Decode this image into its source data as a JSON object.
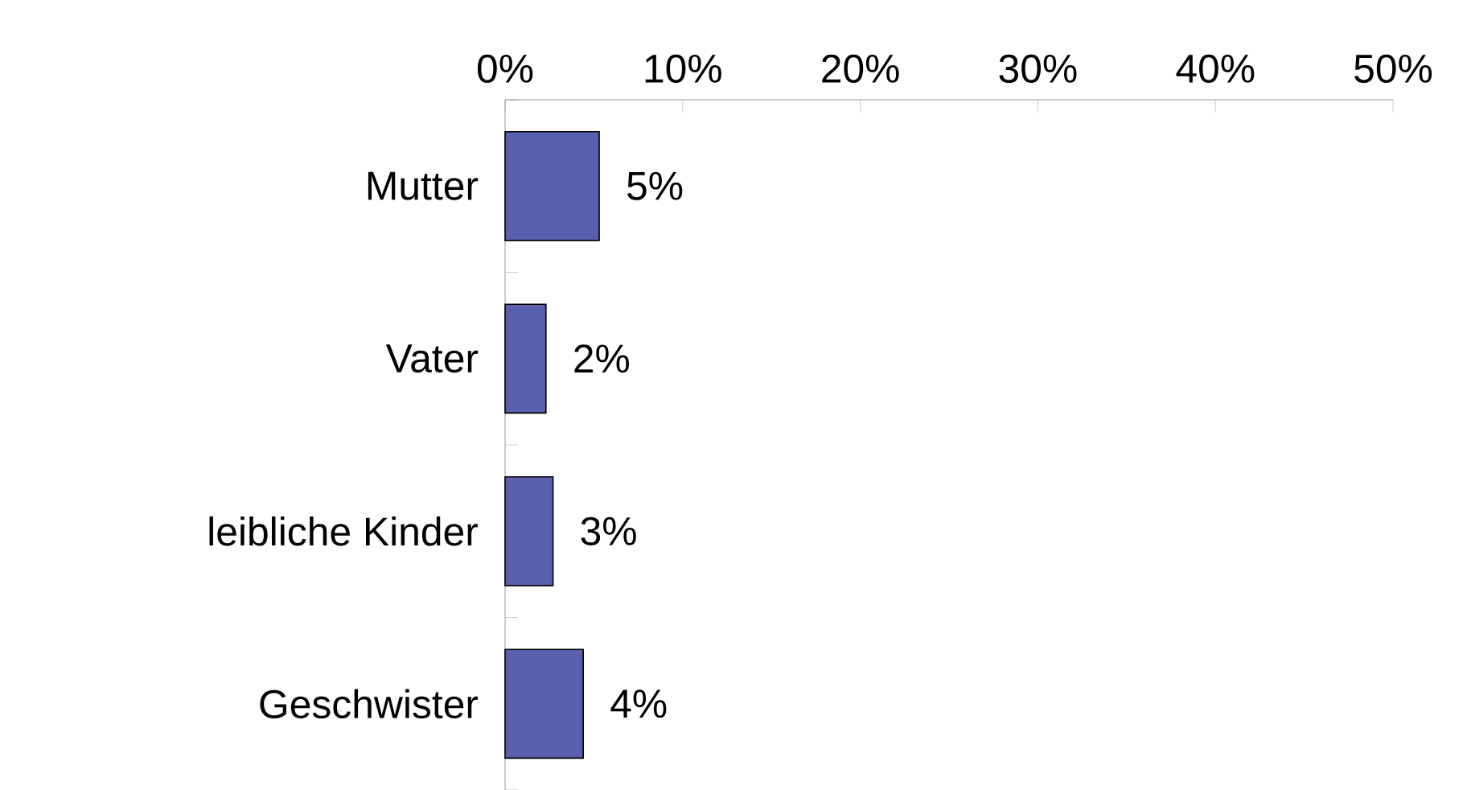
{
  "chart_data": {
    "type": "bar",
    "orientation": "horizontal",
    "categories": [
      "Mutter",
      "Vater",
      "leibliche Kinder",
      "Geschwister"
    ],
    "values": [
      5.3,
      2.3,
      2.7,
      4.4
    ],
    "value_labels": [
      "5%",
      "2%",
      "3%",
      "4%"
    ],
    "color": "#5a5fae",
    "xlim": [
      0,
      50
    ],
    "xticks": [
      {
        "value": 0,
        "label": "0%"
      },
      {
        "value": 10,
        "label": "10%"
      },
      {
        "value": 20,
        "label": "20%"
      },
      {
        "value": 30,
        "label": "30%"
      },
      {
        "value": 40,
        "label": "40%"
      },
      {
        "value": 50,
        "label": "50%"
      }
    ]
  }
}
